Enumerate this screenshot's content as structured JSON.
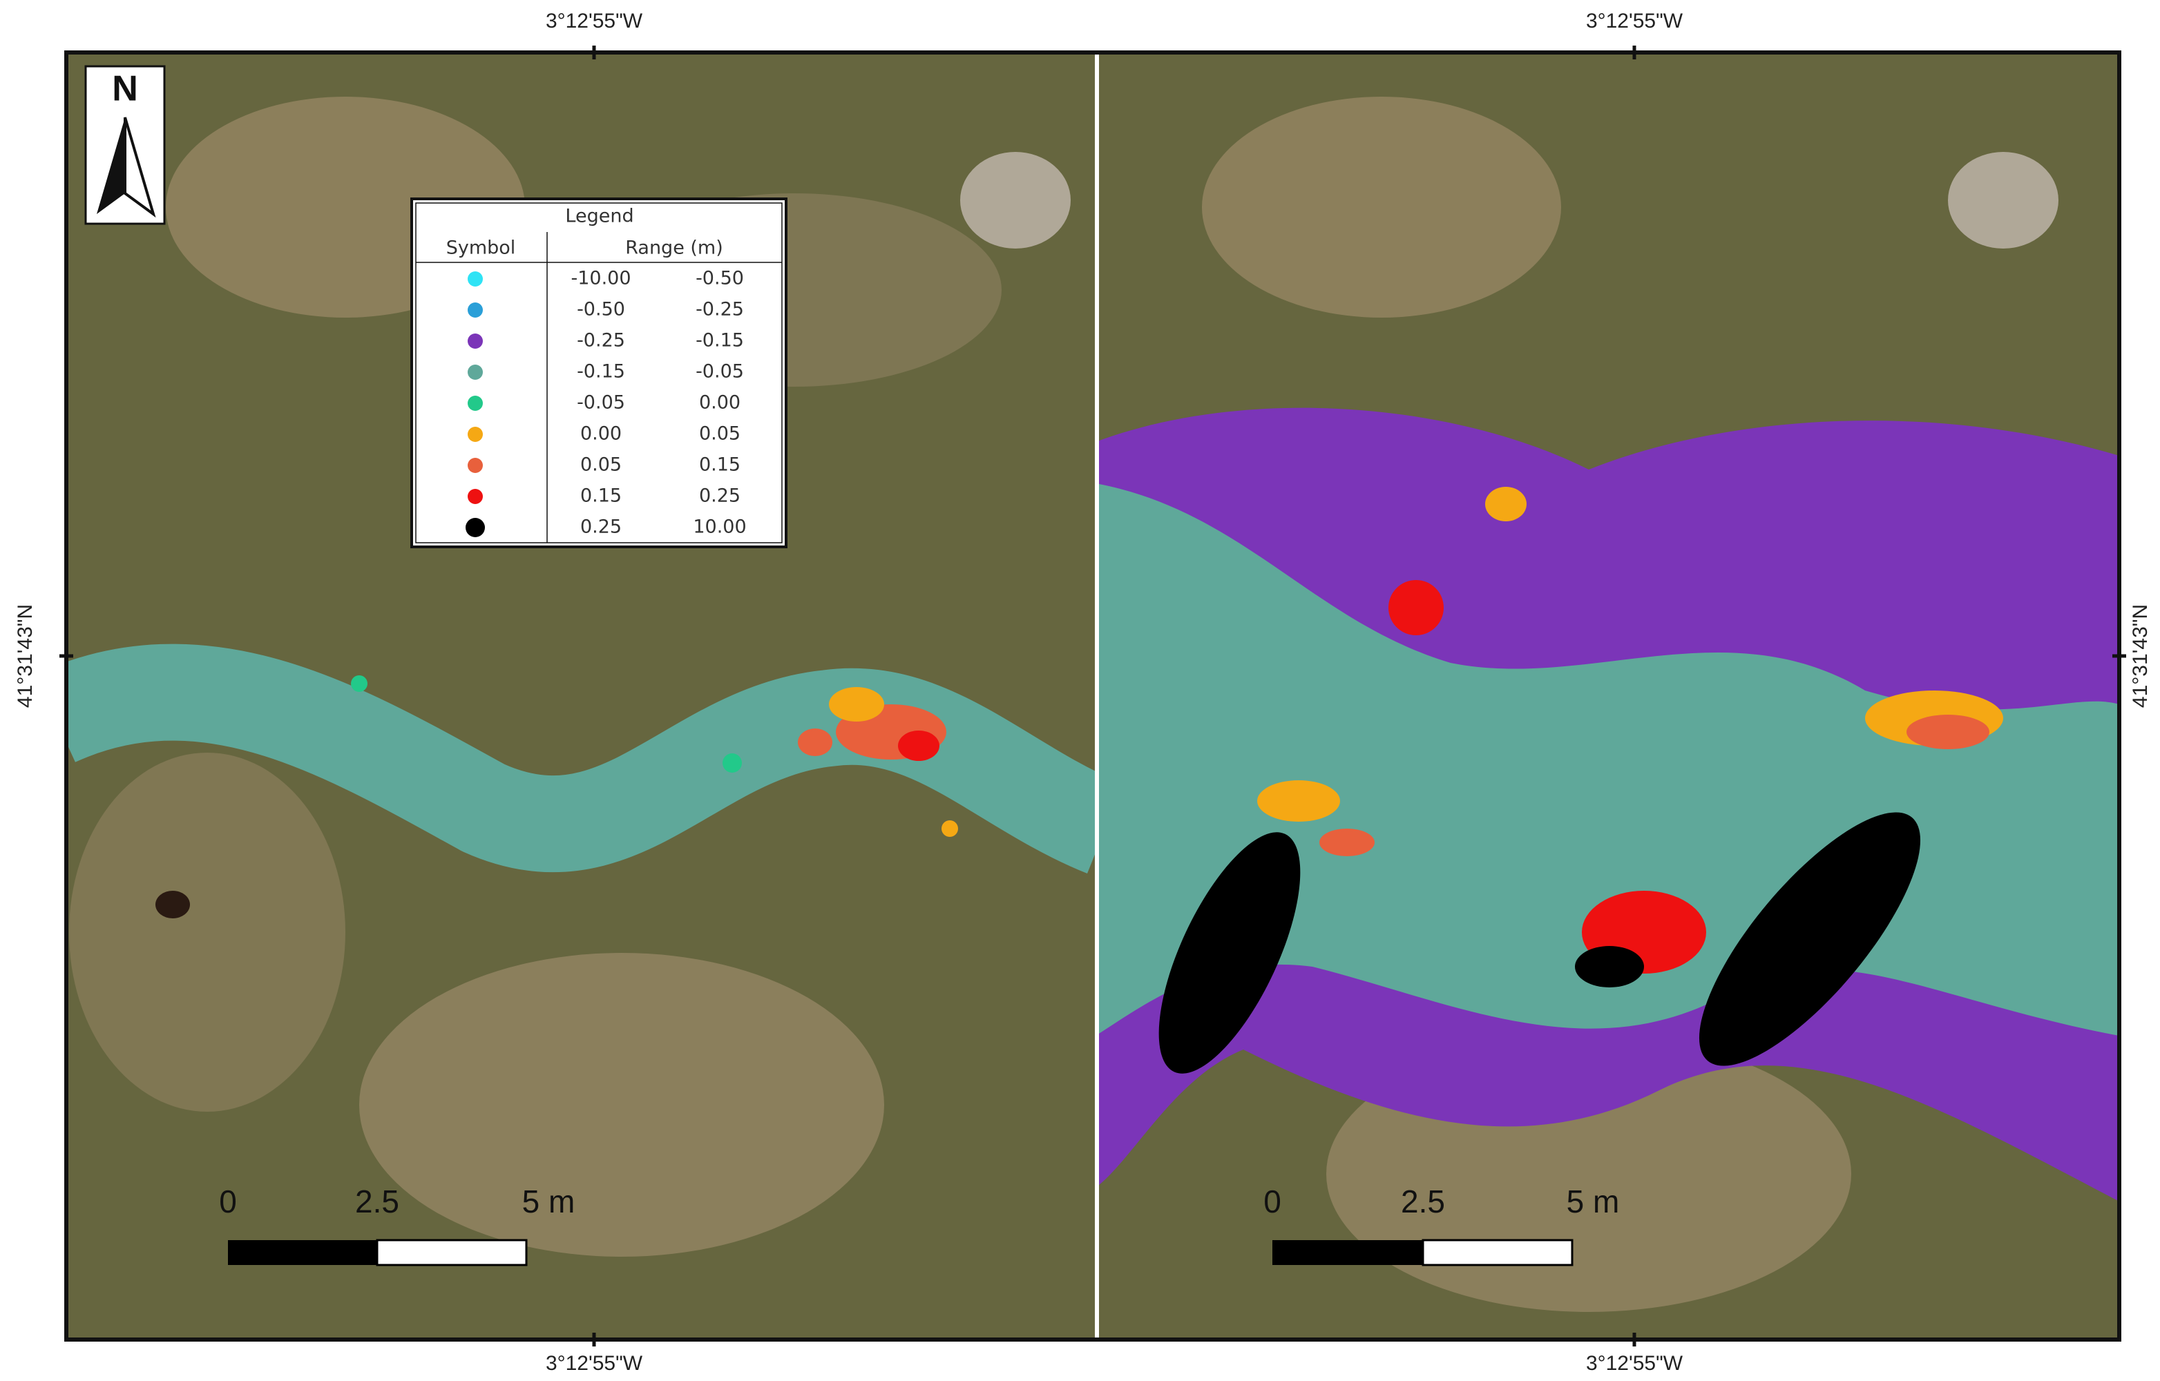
{
  "coordinates": {
    "top": [
      "3°12'55\"W",
      "3°12'55\"W"
    ],
    "bottom": [
      "3°12'55\"W",
      "3°12'55\"W"
    ],
    "left": "41°31'43\"N",
    "right": "41°31'43\"N"
  },
  "north_arrow": "N",
  "legend": {
    "title": "Legend",
    "headers": [
      "Symbol",
      "Range (m)"
    ],
    "rows": [
      {
        "color": "#2fe3f5",
        "min": "-10.00",
        "max": "-0.50"
      },
      {
        "color": "#2a9fd8",
        "min": "-0.50",
        "max": "-0.25"
      },
      {
        "color": "#7b35b8",
        "min": "-0.25",
        "max": "-0.15"
      },
      {
        "color": "#5fa89a",
        "min": "-0.15",
        "max": "-0.05"
      },
      {
        "color": "#22c98a",
        "min": "-0.05",
        "max": "0.00"
      },
      {
        "color": "#f5a814",
        "min": "0.00",
        "max": "0.05"
      },
      {
        "color": "#e8603c",
        "min": "0.05",
        "max": "0.15"
      },
      {
        "color": "#ee1111",
        "min": "0.15",
        "max": "0.25"
      },
      {
        "color": "#000000",
        "min": "0.25",
        "max": "10.00"
      }
    ]
  },
  "scale_bar_labels": [
    [
      "0",
      "2.5",
      "5 m"
    ],
    [
      "0",
      "2.5",
      "5 m"
    ]
  ]
}
